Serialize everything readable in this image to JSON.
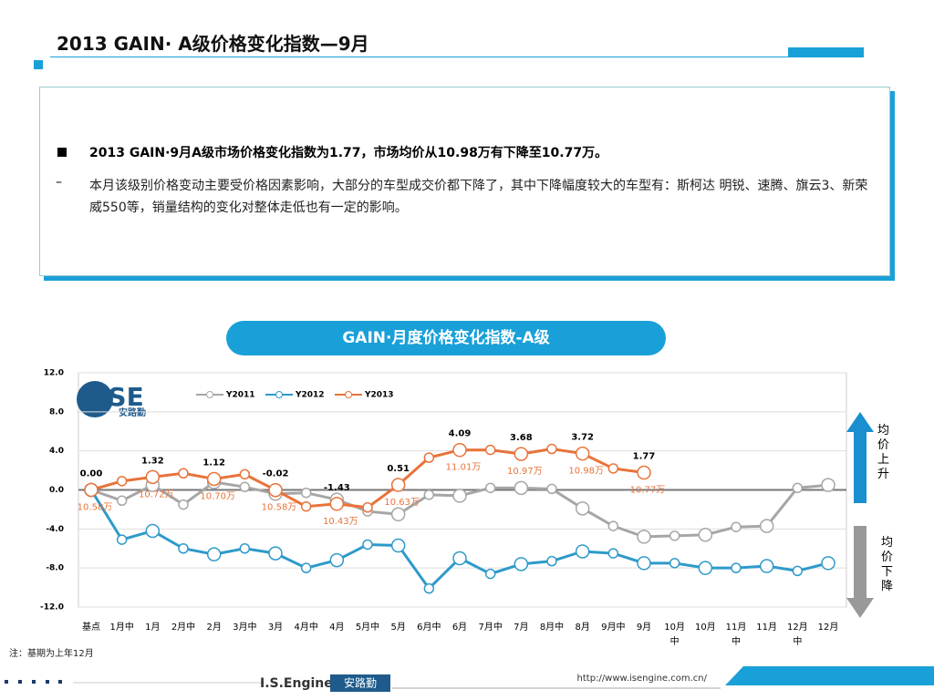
{
  "header": {
    "title": "2013 GAIN· A级价格变化指数—9月"
  },
  "box": {
    "bullet": "2013 GAIN·9月A级市场价格变化指数为1.77，市场均价从10.98万有下降至10.77万。",
    "detail": "本月该级别价格变动主要受价格因素影响，大部分的车型成交价都下降了，其中下降幅度较大的车型有：斯柯达 明锐、速腾、旗云3、新荣威550等，销量结构的变化对整体走低也有一定的影响。"
  },
  "chart_data": {
    "type": "line",
    "title": "GAIN·月度价格变化指数-A级",
    "categories": [
      "基点",
      "1月中",
      "1月",
      "2月中",
      "2月",
      "3月中",
      "3月",
      "4月中",
      "4月",
      "5月中",
      "5月",
      "6月中",
      "6月",
      "7月中",
      "7月",
      "8月中",
      "8月",
      "9月中",
      "9月",
      "10月中",
      "10月",
      "11月中",
      "11月",
      "12月中",
      "12月"
    ],
    "ylim": [
      -12,
      12
    ],
    "yticks": [
      {
        "value": 12,
        "label": "12.0"
      },
      {
        "value": 8,
        "label": "8.0"
      },
      {
        "value": 4,
        "label": "4.0"
      },
      {
        "value": 0,
        "label": "0.0"
      },
      {
        "value": -4,
        "label": "-4.0"
      },
      {
        "value": -8,
        "label": "-8.0"
      },
      {
        "value": -12,
        "label": "-12.0"
      }
    ],
    "grid": true,
    "series": [
      {
        "name": "Y2011",
        "color": "#a6a6a6",
        "values": [
          0,
          -1.1,
          0.5,
          -1.5,
          0.8,
          0.3,
          -0.4,
          -0.3,
          -1.0,
          -2.2,
          -2.5,
          -0.5,
          -0.6,
          0.2,
          0.2,
          0.1,
          -1.9,
          -3.7,
          -4.8,
          -4.7,
          -4.6,
          -3.8,
          -3.7,
          0.2,
          0.5
        ]
      },
      {
        "name": "Y2012",
        "color": "#2e9ac9",
        "values": [
          0,
          -5.1,
          -4.2,
          -6.0,
          -6.6,
          -6.0,
          -6.5,
          -8.0,
          -7.2,
          -5.6,
          -5.7,
          -10.1,
          -7.0,
          -8.6,
          -7.6,
          -7.3,
          -6.3,
          -6.5,
          -7.5,
          -7.5,
          -8.0,
          -8.0,
          -7.8,
          -8.3,
          -7.5
        ]
      },
      {
        "name": "Y2013",
        "color": "#e8733a",
        "values": [
          0,
          0.9,
          1.32,
          1.7,
          1.12,
          1.6,
          -0.02,
          -1.7,
          -1.43,
          -1.8,
          0.51,
          3.3,
          4.09,
          4.1,
          3.68,
          4.2,
          3.72,
          2.2,
          1.77,
          null,
          null,
          null,
          null,
          null,
          null
        ],
        "value_labels": [
          "0.00",
          null,
          "1.32",
          null,
          "1.12",
          null,
          "-0.02",
          null,
          "-1.43",
          null,
          "0.51",
          null,
          "4.09",
          null,
          "3.68",
          null,
          "3.72",
          null,
          "1.77",
          null,
          null,
          null,
          null,
          null,
          null
        ],
        "price_labels": [
          "10.58万",
          null,
          "10.72万",
          null,
          "10.70万",
          null,
          "10.58万",
          null,
          "10.43万",
          null,
          "10.63万",
          null,
          "11.01万",
          null,
          "10.97万",
          null,
          "10.98万",
          null,
          "10.77万",
          null,
          null,
          null,
          null,
          null,
          null
        ]
      }
    ],
    "annotations": {
      "up": "均价上升",
      "down": "均价下降",
      "note": "注：基期为上年12月"
    }
  },
  "footer": {
    "brand": "I.S.Engine",
    "brand_cn": "安路勤",
    "url": "http://www.isengine.com.cn/",
    "logo": "ISE",
    "logo_cn": "安路勤"
  }
}
